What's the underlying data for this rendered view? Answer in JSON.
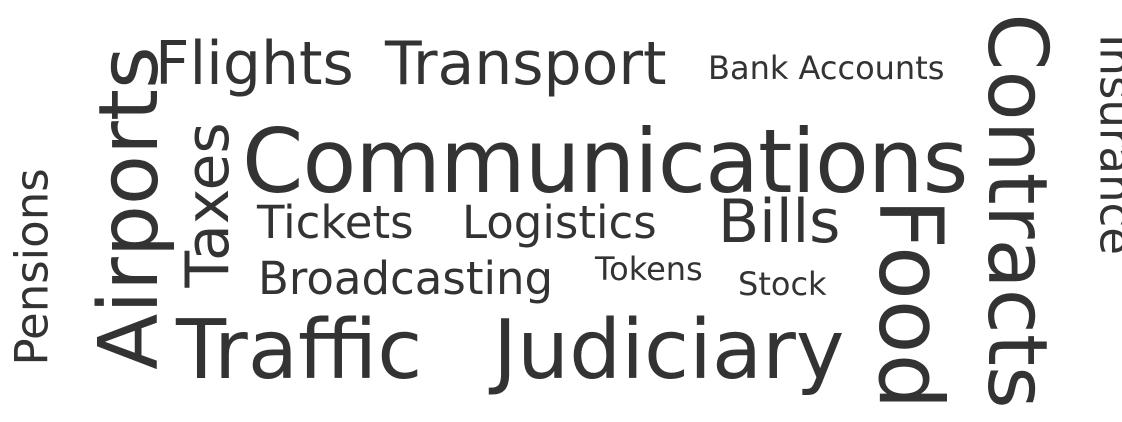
{
  "word_cloud": {
    "text_color": "#333333",
    "background_color": "#ffffff",
    "words": {
      "flights": "Flights",
      "transport": "Transport",
      "bank_accounts": "Bank Accounts",
      "communications": "Communications",
      "tickets": "Tickets",
      "logistics": "Logistics",
      "bills": "Bills",
      "broadcasting": "Broadcasting",
      "tokens": "Tokens",
      "stock": "Stock",
      "traffic": "Traffic",
      "judiciary": "Judiciary",
      "pensions": "Pensions",
      "airports": "Airports",
      "taxes": "Taxes",
      "food": "Food",
      "contracts": "Contracts",
      "insurance": "Insurance"
    }
  }
}
